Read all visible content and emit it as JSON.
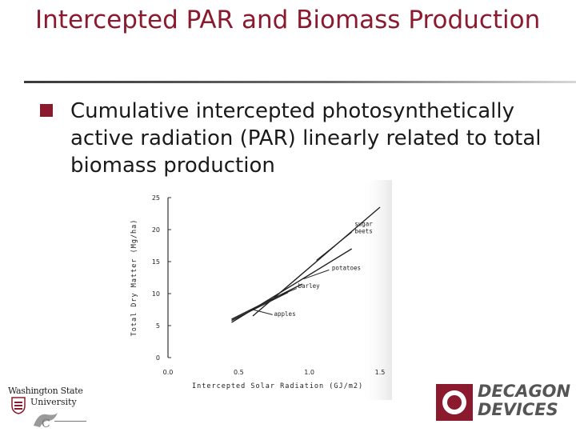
{
  "slide": {
    "title": "Intercepted PAR and Biomass Production",
    "bullet": "Cumulative intercepted photosynthetically active radiation (PAR) linearly related to total biomass production"
  },
  "logos": {
    "wsu_name": "Washington State",
    "wsu_university": "University",
    "decagon_line1": "DECAGON",
    "decagon_line2": "DEVICES"
  },
  "chart_data": {
    "type": "line",
    "title": "",
    "xlabel": "Intercepted Solar Radiation (GJ/m2)",
    "ylabel": "Total Dry Matter (Mg/ha)",
    "xlim": [
      0,
      1.5
    ],
    "ylim": [
      0,
      25
    ],
    "xticks": [
      "0.0",
      "0.5",
      "1.0",
      "1.5"
    ],
    "yticks": [
      "0",
      "5",
      "10",
      "15",
      "20",
      "25"
    ],
    "grid": false,
    "series": [
      {
        "name": "sugar beets",
        "x": [
          0.6,
          1.5
        ],
        "y": [
          6.5,
          23.5
        ]
      },
      {
        "name": "potatoes",
        "x": [
          0.45,
          1.3
        ],
        "y": [
          5.5,
          17.0
        ]
      },
      {
        "name": "barley",
        "x": [
          0.45,
          0.95
        ],
        "y": [
          6.0,
          11.5
        ]
      },
      {
        "name": "apples",
        "x": [
          0.45,
          0.85
        ],
        "y": [
          5.8,
          10.2
        ]
      }
    ],
    "annotations": [
      {
        "text": "sugar beets",
        "target": "sugar beets"
      },
      {
        "text": "potatoes",
        "target": "potatoes"
      },
      {
        "text": "barley",
        "target": "barley"
      },
      {
        "text": "apples",
        "target": "apples"
      }
    ]
  }
}
